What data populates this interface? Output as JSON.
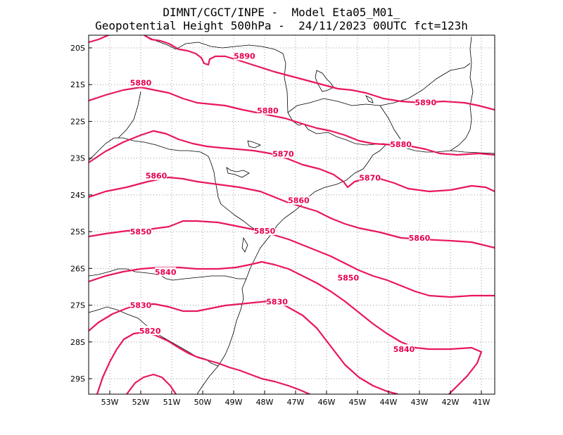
{
  "title": {
    "line1": "DIMNT/CGCT/INPE -  Model Eta05_M01_",
    "line2": "Geopotential Height 500hPa -  24/11/2023 00UTC fct=123h"
  },
  "colors": {
    "contour": "#e8185a",
    "label": "#e8004f",
    "coast": "#000000",
    "grid": "#999999"
  },
  "map": {
    "lat_ticks": [
      "20S",
      "21S",
      "22S",
      "23S",
      "24S",
      "25S",
      "26S",
      "27S",
      "28S",
      "29S"
    ],
    "lon_ticks": [
      "53W",
      "52W",
      "51W",
      "50W",
      "49W",
      "48W",
      "47W",
      "46W",
      "45W",
      "44W",
      "43W",
      "42W",
      "41W"
    ]
  },
  "contour_labels": [
    {
      "text": "5890",
      "lon": -48.65,
      "lat": -20.22
    },
    {
      "text": "5890",
      "lon": -42.8,
      "lat": -21.48
    },
    {
      "text": "5880",
      "lon": -52.0,
      "lat": -20.95
    },
    {
      "text": "5880",
      "lon": -47.9,
      "lat": -21.7
    },
    {
      "text": "5880",
      "lon": -43.6,
      "lat": -22.62
    },
    {
      "text": "5870",
      "lon": -47.4,
      "lat": -22.88
    },
    {
      "text": "5870",
      "lon": -44.6,
      "lat": -23.53
    },
    {
      "text": "5860",
      "lon": -51.5,
      "lat": -23.48
    },
    {
      "text": "5860",
      "lon": -46.9,
      "lat": -24.15
    },
    {
      "text": "5860",
      "lon": -43.0,
      "lat": -25.17
    },
    {
      "text": "5850",
      "lon": -52.0,
      "lat": -25.0
    },
    {
      "text": "5850",
      "lon": -48.0,
      "lat": -24.98
    },
    {
      "text": "5850",
      "lon": -45.3,
      "lat": -26.25
    },
    {
      "text": "5840",
      "lon": -51.2,
      "lat": -26.1
    },
    {
      "text": "5840",
      "lon": -43.5,
      "lat": -28.2
    },
    {
      "text": "5830",
      "lon": -52.0,
      "lat": -27.0
    },
    {
      "text": "5830",
      "lon": -47.6,
      "lat": -26.9
    },
    {
      "text": "5820",
      "lon": -51.7,
      "lat": -27.7
    }
  ]
}
